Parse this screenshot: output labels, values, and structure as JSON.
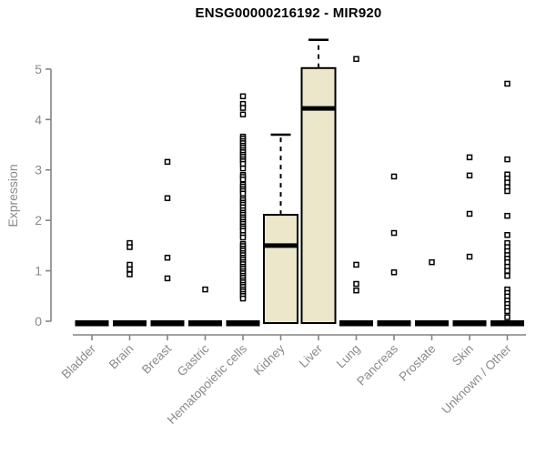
{
  "chart_data": {
    "type": "boxplot",
    "title": "ENSG00000216192 - MIR920",
    "xlabel": "",
    "ylabel": "Expression",
    "ylim": [
      0,
      5
    ],
    "yticks": [
      0,
      1,
      2,
      3,
      4,
      5
    ],
    "grid": false,
    "legend": false,
    "marker": "open-square",
    "colors": {
      "box_fill": "#ece7cb",
      "box_stroke": "#000000",
      "median": "#000000",
      "whisker": "#000000",
      "axis": "#848484",
      "tick_label": "#8a8a8a",
      "title": "#000000",
      "point_stroke": "#000000",
      "point_fill": "#ffffff",
      "background": "#ffffff"
    },
    "categories": [
      {
        "label": "Bladder",
        "box": {
          "q1": 0,
          "median": 0,
          "q3": 0,
          "whisker_low": 0,
          "whisker_high": 0
        },
        "points": []
      },
      {
        "label": "Brain",
        "box": {
          "q1": 0,
          "median": 0,
          "q3": 0,
          "whisker_low": 0,
          "whisker_high": 0
        },
        "points": [
          1.55,
          1.47,
          1.12,
          1.03,
          0.93
        ]
      },
      {
        "label": "Breast",
        "box": {
          "q1": 0,
          "median": 0,
          "q3": 0,
          "whisker_low": 0,
          "whisker_high": 0
        },
        "points": [
          3.16,
          2.44,
          1.26,
          0.85
        ]
      },
      {
        "label": "Gastric",
        "box": {
          "q1": 0,
          "median": 0,
          "q3": 0,
          "whisker_low": 0,
          "whisker_high": 0
        },
        "points": [
          0.63
        ]
      },
      {
        "label": "Hematopoietic cells",
        "box": {
          "q1": 0,
          "median": 0,
          "q3": 0,
          "whisker_low": 0,
          "whisker_high": 0
        },
        "points": [
          4.46,
          4.31,
          4.23,
          4.1,
          3.66,
          3.62,
          3.57,
          3.53,
          3.48,
          3.44,
          3.39,
          3.35,
          3.3,
          3.26,
          3.21,
          3.17,
          3.12,
          3.03,
          2.9,
          2.86,
          2.81,
          2.71,
          2.67,
          2.62,
          2.58,
          2.53,
          2.44,
          2.4,
          2.35,
          2.31,
          2.26,
          2.2,
          2.15,
          2.11,
          2.06,
          2.02,
          1.97,
          1.93,
          1.88,
          1.84,
          1.79,
          1.71,
          1.66,
          1.53,
          1.49,
          1.44,
          1.4,
          1.35,
          1.31,
          1.26,
          1.22,
          1.17,
          1.13,
          1.08,
          1.04,
          0.99,
          0.95,
          0.9,
          0.86,
          0.81,
          0.77,
          0.72,
          0.68,
          0.63,
          0.59,
          0.54,
          0.5,
          0.45
        ]
      },
      {
        "label": "Kidney",
        "box": {
          "q1": 0,
          "median": 1.5,
          "q3": 2.11,
          "whisker_low": 0,
          "whisker_high": 3.7
        },
        "points": []
      },
      {
        "label": "Liver",
        "box": {
          "q1": 0,
          "median": 4.22,
          "q3": 5.02,
          "whisker_low": 0,
          "whisker_high": 5.58
        },
        "points": []
      },
      {
        "label": "Lung",
        "box": {
          "q1": 0,
          "median": 0,
          "q3": 0,
          "whisker_low": 0,
          "whisker_high": 0
        },
        "points": [
          5.2,
          1.12,
          0.74,
          0.61
        ]
      },
      {
        "label": "Pancreas",
        "box": {
          "q1": 0,
          "median": 0,
          "q3": 0,
          "whisker_low": 0,
          "whisker_high": 0
        },
        "points": [
          2.87,
          1.75,
          0.97
        ]
      },
      {
        "label": "Prostate",
        "box": {
          "q1": 0,
          "median": 0,
          "q3": 0,
          "whisker_low": 0,
          "whisker_high": 0
        },
        "points": [
          1.17
        ]
      },
      {
        "label": "Skin",
        "box": {
          "q1": 0,
          "median": 0,
          "q3": 0,
          "whisker_low": 0,
          "whisker_high": 0
        },
        "points": [
          3.25,
          2.89,
          2.13,
          1.28
        ]
      },
      {
        "label": "Unknown / Other",
        "box": {
          "q1": 0,
          "median": 0,
          "q3": 0,
          "whisker_low": 0,
          "whisker_high": 0
        },
        "points": [
          4.71,
          3.21,
          2.91,
          2.83,
          2.75,
          2.66,
          2.58,
          2.09,
          1.71,
          1.55,
          1.47,
          1.39,
          1.31,
          1.24,
          1.17,
          1.08,
          1.0,
          0.9,
          0.63,
          0.56,
          0.49,
          0.41,
          0.34,
          0.27,
          0.2,
          0.08
        ]
      }
    ]
  }
}
